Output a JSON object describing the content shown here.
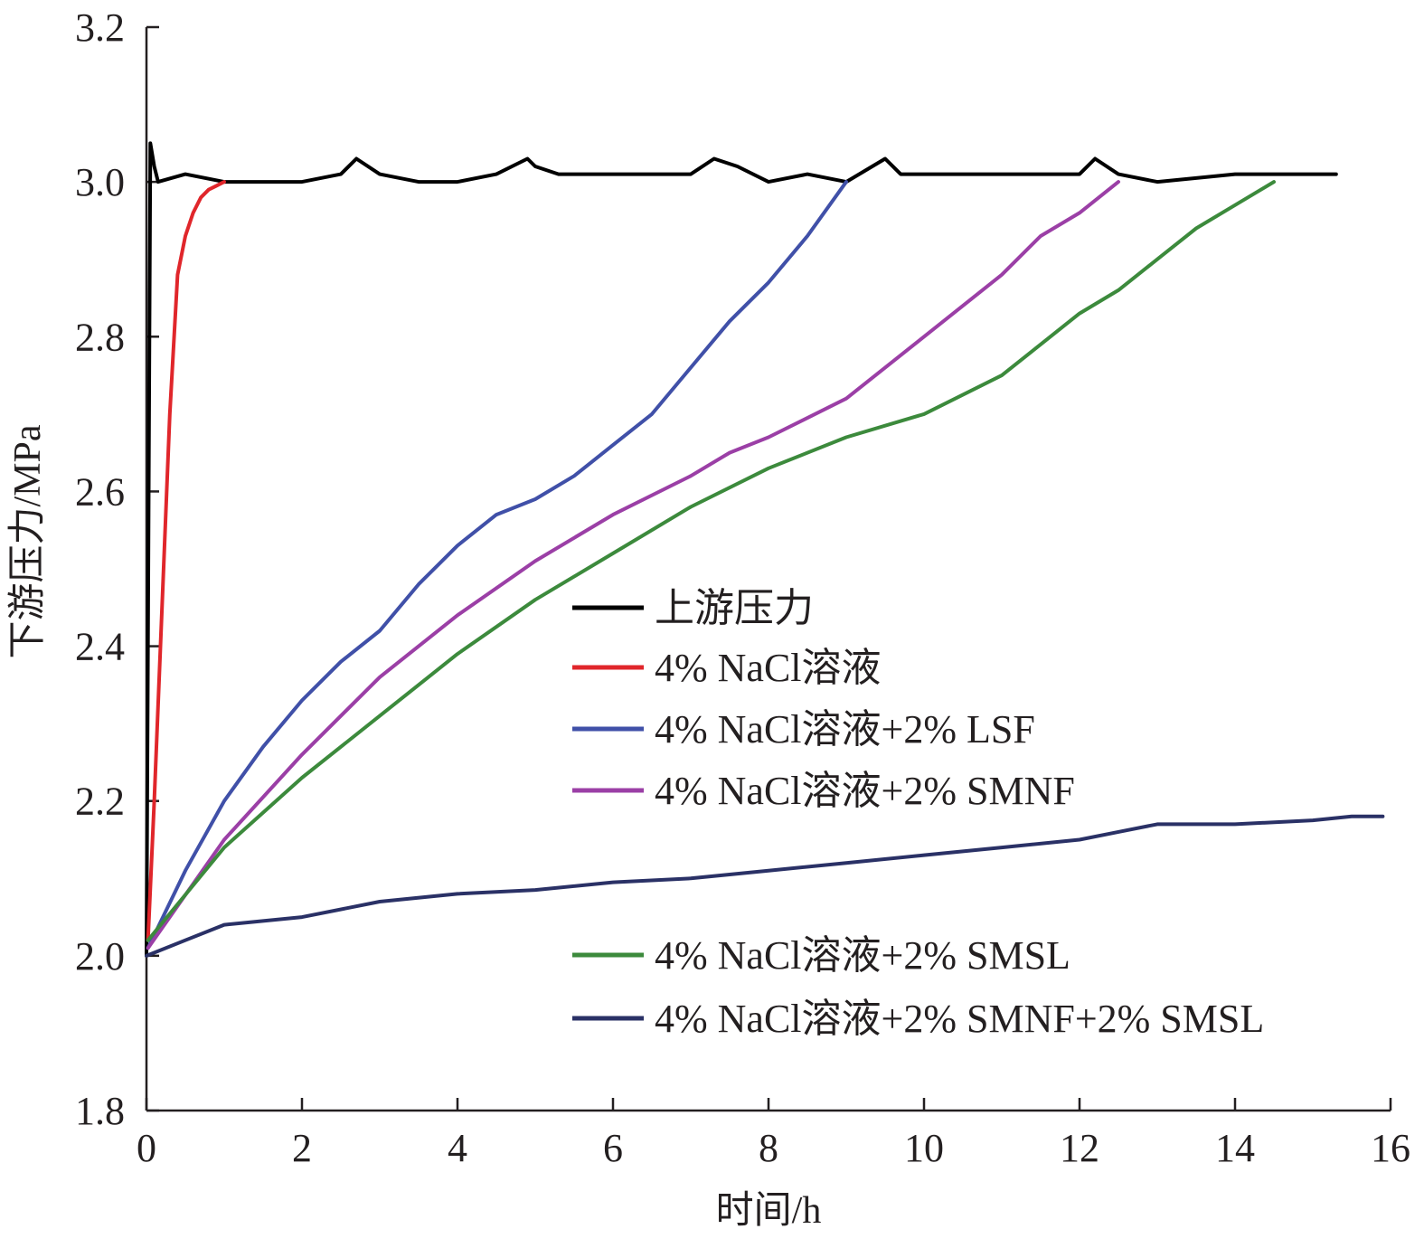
{
  "chart_data": {
    "type": "line",
    "title": "",
    "xlabel": "时间/h",
    "ylabel": "下游压力/MPa",
    "xlim": [
      0,
      16
    ],
    "ylim": [
      1.8,
      3.2
    ],
    "xticks": [
      0,
      2,
      4,
      6,
      8,
      10,
      12,
      14,
      16
    ],
    "yticks": [
      1.8,
      2.0,
      2.2,
      2.4,
      2.6,
      2.8,
      3.0,
      3.2
    ],
    "xtick_labels": [
      "0",
      "2",
      "4",
      "6",
      "8",
      "10",
      "12",
      "14",
      "16"
    ],
    "ytick_labels": [
      "1.8",
      "2.0",
      "2.2",
      "2.4",
      "2.6",
      "2.8",
      "3.0",
      "3.2"
    ],
    "grid": false,
    "legend_position": "center-right",
    "series": [
      {
        "name": "上游压力",
        "color": "#000000",
        "x": [
          0,
          0.05,
          0.1,
          0.15,
          0.5,
          1.0,
          1.5,
          2.0,
          2.5,
          2.7,
          3.0,
          3.5,
          4.0,
          4.5,
          4.9,
          5.0,
          5.3,
          6.0,
          7.0,
          7.3,
          7.6,
          8.0,
          8.5,
          9.0,
          9.5,
          9.7,
          10.0,
          11.0,
          12.0,
          12.2,
          12.5,
          13.0,
          14.0,
          15.0,
          15.3
        ],
        "y": [
          2.0,
          3.05,
          3.02,
          3.0,
          3.01,
          3.0,
          3.0,
          3.0,
          3.01,
          3.03,
          3.01,
          3.0,
          3.0,
          3.01,
          3.03,
          3.02,
          3.01,
          3.01,
          3.01,
          3.03,
          3.02,
          3.0,
          3.01,
          3.0,
          3.03,
          3.01,
          3.01,
          3.01,
          3.01,
          3.03,
          3.01,
          3.0,
          3.01,
          3.01,
          3.01
        ]
      },
      {
        "name": "4% NaCl溶液",
        "color": "#e0262b",
        "x": [
          0.02,
          0.1,
          0.2,
          0.3,
          0.4,
          0.5,
          0.6,
          0.7,
          0.8,
          0.9,
          1.0
        ],
        "y": [
          2.02,
          2.2,
          2.45,
          2.7,
          2.88,
          2.93,
          2.96,
          2.98,
          2.99,
          2.995,
          3.0
        ]
      },
      {
        "name": "4% NaCl溶液+2% LSF",
        "color": "#4050a8",
        "x": [
          0.02,
          0.5,
          1.0,
          1.5,
          2.0,
          2.5,
          3.0,
          3.5,
          4.0,
          4.5,
          5.0,
          5.5,
          6.0,
          6.5,
          7.0,
          7.5,
          8.0,
          8.5,
          9.0
        ],
        "y": [
          2.01,
          2.11,
          2.2,
          2.27,
          2.33,
          2.38,
          2.42,
          2.48,
          2.53,
          2.57,
          2.59,
          2.62,
          2.66,
          2.7,
          2.76,
          2.82,
          2.87,
          2.93,
          3.0
        ]
      },
      {
        "name": "4% NaCl溶液+2% SMNF",
        "color": "#9b3fa6",
        "x": [
          0.02,
          1.0,
          2.0,
          3.0,
          4.0,
          5.0,
          6.0,
          7.0,
          7.5,
          8.0,
          9.0,
          10.0,
          11.0,
          11.5,
          12.0,
          12.5
        ],
        "y": [
          2.01,
          2.15,
          2.26,
          2.36,
          2.44,
          2.51,
          2.57,
          2.62,
          2.65,
          2.67,
          2.72,
          2.8,
          2.88,
          2.93,
          2.96,
          3.0
        ]
      },
      {
        "name": "4% NaCl溶液+2% SMSL",
        "color": "#3c8a3c",
        "x": [
          0.02,
          1.0,
          2.0,
          3.0,
          4.0,
          5.0,
          6.0,
          7.0,
          8.0,
          9.0,
          10.0,
          11.0,
          12.0,
          12.5,
          13.0,
          13.5,
          14.0,
          14.5
        ],
        "y": [
          2.02,
          2.14,
          2.23,
          2.31,
          2.39,
          2.46,
          2.52,
          2.58,
          2.63,
          2.67,
          2.7,
          2.75,
          2.83,
          2.86,
          2.9,
          2.94,
          2.97,
          3.0
        ]
      },
      {
        "name": "4% NaCl溶液+2% SMNF+2% SMSL",
        "color": "#2a3166",
        "x": [
          0,
          0.5,
          1.0,
          2.0,
          3.0,
          4.0,
          5.0,
          6.0,
          7.0,
          8.0,
          9.0,
          10.0,
          11.0,
          12.0,
          12.5,
          13.0,
          14.0,
          15.0,
          15.5,
          15.9
        ],
        "y": [
          2.0,
          2.02,
          2.04,
          2.05,
          2.07,
          2.08,
          2.085,
          2.095,
          2.1,
          2.11,
          2.12,
          2.13,
          2.14,
          2.15,
          2.16,
          2.17,
          2.17,
          2.175,
          2.18,
          2.18
        ]
      }
    ]
  }
}
